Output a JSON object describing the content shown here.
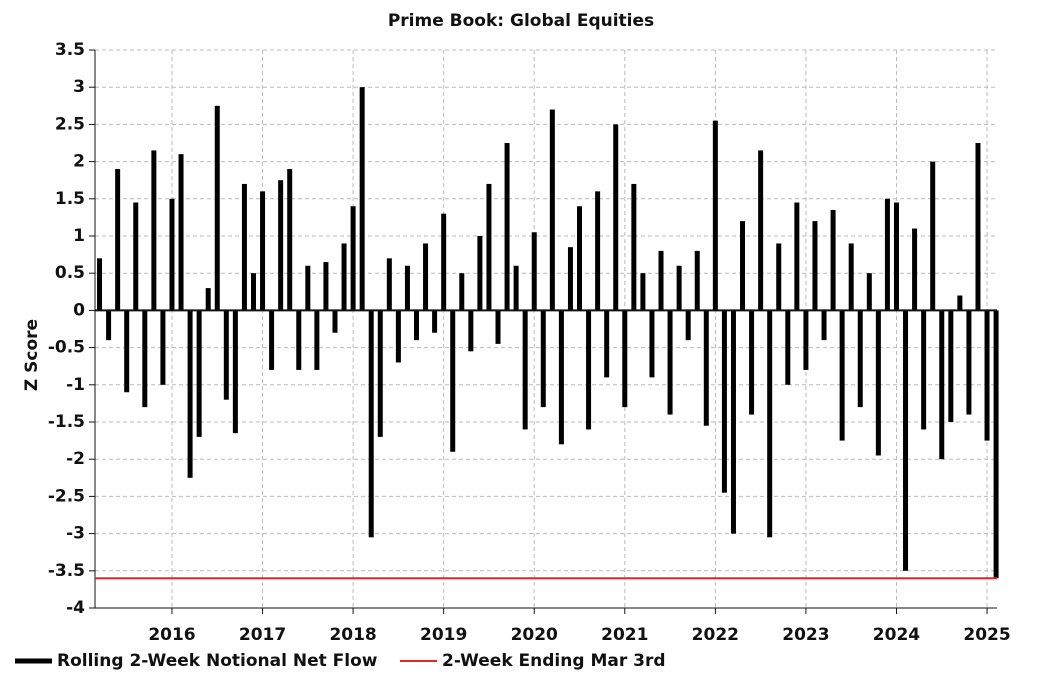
{
  "chart_data": {
    "type": "bar",
    "title": "Prime Book: Global Equities",
    "y_label": "Z Score",
    "x": [
      2015.2,
      2015.3,
      2015.4,
      2015.5,
      2015.6,
      2015.7,
      2015.8,
      2015.9,
      2016.0,
      2016.1,
      2016.2,
      2016.3,
      2016.4,
      2016.5,
      2016.6,
      2016.7,
      2016.8,
      2016.9,
      2017.0,
      2017.1,
      2017.2,
      2017.3,
      2017.4,
      2017.5,
      2017.6,
      2017.7,
      2017.8,
      2017.9,
      2018.0,
      2018.1,
      2018.2,
      2018.3,
      2018.4,
      2018.5,
      2018.6,
      2018.7,
      2018.8,
      2018.9,
      2019.0,
      2019.1,
      2019.2,
      2019.3,
      2019.4,
      2019.5,
      2019.6,
      2019.7,
      2019.8,
      2019.9,
      2020.0,
      2020.1,
      2020.2,
      2020.3,
      2020.4,
      2020.5,
      2020.6,
      2020.7,
      2020.8,
      2020.9,
      2021.0,
      2021.1,
      2021.2,
      2021.3,
      2021.4,
      2021.5,
      2021.6,
      2021.7,
      2021.8,
      2021.9,
      2022.0,
      2022.1,
      2022.2,
      2022.3,
      2022.4,
      2022.5,
      2022.6,
      2022.7,
      2022.8,
      2022.9,
      2023.0,
      2023.1,
      2023.2,
      2023.3,
      2023.4,
      2023.5,
      2023.6,
      2023.7,
      2023.8,
      2023.9,
      2024.0,
      2024.1,
      2024.2,
      2024.3,
      2024.4,
      2024.5,
      2024.6,
      2024.7,
      2024.8,
      2024.9,
      2025.0,
      2025.1
    ],
    "series": [
      {
        "name": "Rolling 2-Week Notional Net Flow",
        "color": "#000000",
        "values": [
          0.7,
          -0.4,
          1.9,
          -1.1,
          1.45,
          -1.3,
          2.15,
          -1.0,
          1.5,
          2.1,
          -2.25,
          -1.7,
          0.3,
          2.75,
          -1.2,
          -1.65,
          1.7,
          0.5,
          1.6,
          -0.8,
          1.75,
          1.9,
          -0.8,
          0.6,
          -0.8,
          0.65,
          -0.3,
          0.9,
          1.4,
          3.0,
          -3.05,
          -1.7,
          0.7,
          -0.7,
          0.6,
          -0.4,
          0.9,
          -0.3,
          1.3,
          -1.9,
          0.5,
          -0.55,
          1.0,
          1.7,
          -0.45,
          2.25,
          0.6,
          -1.6,
          1.05,
          -1.3,
          2.7,
          -1.8,
          0.85,
          1.4,
          -1.6,
          1.6,
          -0.9,
          2.5,
          -1.3,
          1.7,
          0.5,
          -0.9,
          0.8,
          -1.4,
          0.6,
          -0.4,
          0.8,
          -1.55,
          2.55,
          -2.45,
          -3.0,
          1.2,
          -1.4,
          2.15,
          -3.05,
          0.9,
          -1.0,
          1.45,
          -0.8,
          1.2,
          -0.4,
          1.35,
          -1.75,
          0.9,
          -1.3,
          0.5,
          -1.95,
          1.5,
          1.45,
          -3.5,
          1.1,
          -1.6,
          2.0,
          -2.0,
          -1.5,
          0.2,
          -1.4,
          2.25,
          -1.75,
          -3.6
        ]
      }
    ],
    "reference_line": {
      "name": "2-Week Ending Mar 3rd",
      "value": -3.6,
      "color": "#e0262b"
    },
    "xlim": [
      2015.15,
      2025.11
    ],
    "xticks": [
      2016,
      2017,
      2018,
      2019,
      2020,
      2021,
      2022,
      2023,
      2024,
      2025
    ],
    "ylim": [
      -4,
      3.5
    ],
    "yticks": [
      -4,
      -3.5,
      -3,
      -2.5,
      -2,
      -1.5,
      -1,
      -0.5,
      0,
      0.5,
      1,
      1.5,
      2,
      2.5,
      3,
      3.5
    ],
    "grid": true
  }
}
